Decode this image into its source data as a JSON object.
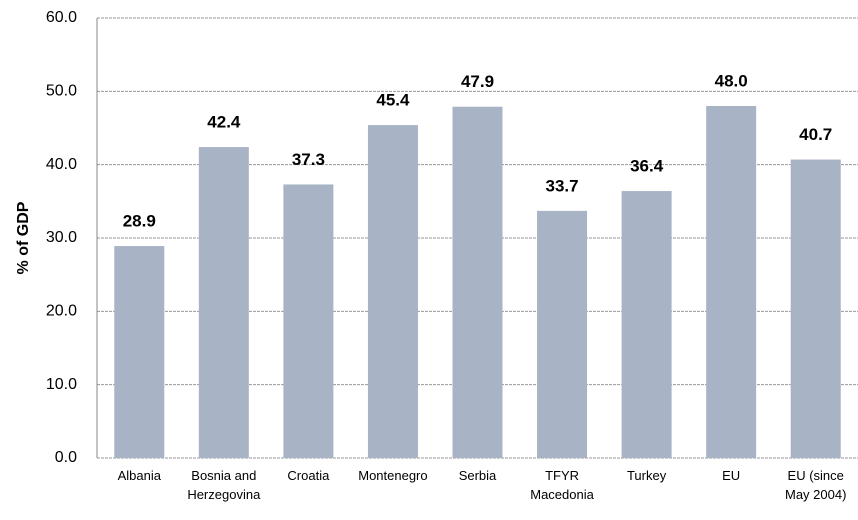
{
  "chart_data": {
    "type": "bar",
    "y_label": "% of GDP",
    "categories": [
      "Albania",
      "Bosnia and Herzegovina",
      "Croatia",
      "Montenegro",
      "Serbia",
      "TFYR Macedonia",
      "Turkey",
      "EU",
      "EU (since May 2004)"
    ],
    "values": [
      28.9,
      42.4,
      37.3,
      45.4,
      47.9,
      33.7,
      36.4,
      48.0,
      40.7
    ],
    "value_labels": [
      "28.9",
      "42.4",
      "37.3",
      "45.4",
      "47.9",
      "33.7",
      "36.4",
      "48.0",
      "40.7"
    ],
    "color": "#a8b3c5",
    "ylim": [
      0,
      60
    ],
    "yticks": [
      {
        "value": 0,
        "label": "0.0"
      },
      {
        "value": 10,
        "label": "10.0"
      },
      {
        "value": 20,
        "label": "20.0"
      },
      {
        "value": 30,
        "label": "30.0"
      },
      {
        "value": 40,
        "label": "40.0"
      },
      {
        "value": 50,
        "label": "50.0"
      },
      {
        "value": 60,
        "label": "60.0"
      }
    ],
    "grid": true
  }
}
